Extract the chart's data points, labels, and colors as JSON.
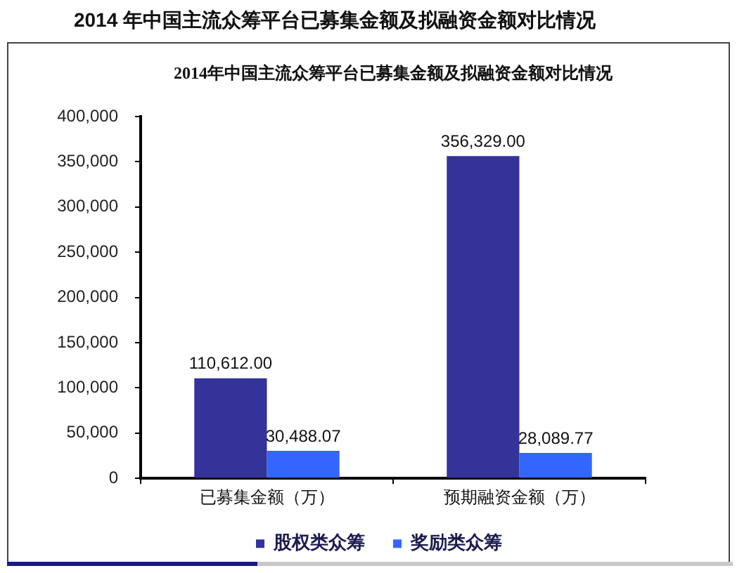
{
  "chart_data": {
    "type": "bar",
    "title": "2014 年中国主流众筹平台已募集金额及拟融资金额对比情况",
    "subtitle": "2014年中国主流众筹平台已募集金额及拟融资金额对比情况",
    "categories": [
      "已募集金额（万）",
      "预期融资金额（万）"
    ],
    "series": [
      {
        "name": "股权类众筹",
        "color": "#333399",
        "values": [
          110612,
          356329
        ],
        "value_labels": [
          "110,612.00",
          "356,329.00"
        ]
      },
      {
        "name": "奖励类众筹",
        "color": "#3366ff",
        "values": [
          30488.07,
          28089.77
        ],
        "value_labels": [
          "30,488.07",
          "28,089.77"
        ]
      }
    ],
    "ylim": [
      0,
      400000
    ],
    "yticks": [
      0,
      {
        "value": 50000,
        "label": "50,000"
      },
      {
        "value": 100000,
        "label": "100,000"
      },
      {
        "value": 150000,
        "label": "150,000"
      },
      {
        "value": 200000,
        "label": "200,000"
      },
      {
        "value": 250000,
        "label": "250,000"
      },
      {
        "value": 300000,
        "label": "300,000"
      },
      {
        "value": 350000,
        "label": "350,000"
      },
      {
        "value": 400000,
        "label": "400,000"
      }
    ],
    "grid": false,
    "legend": "bottom"
  }
}
